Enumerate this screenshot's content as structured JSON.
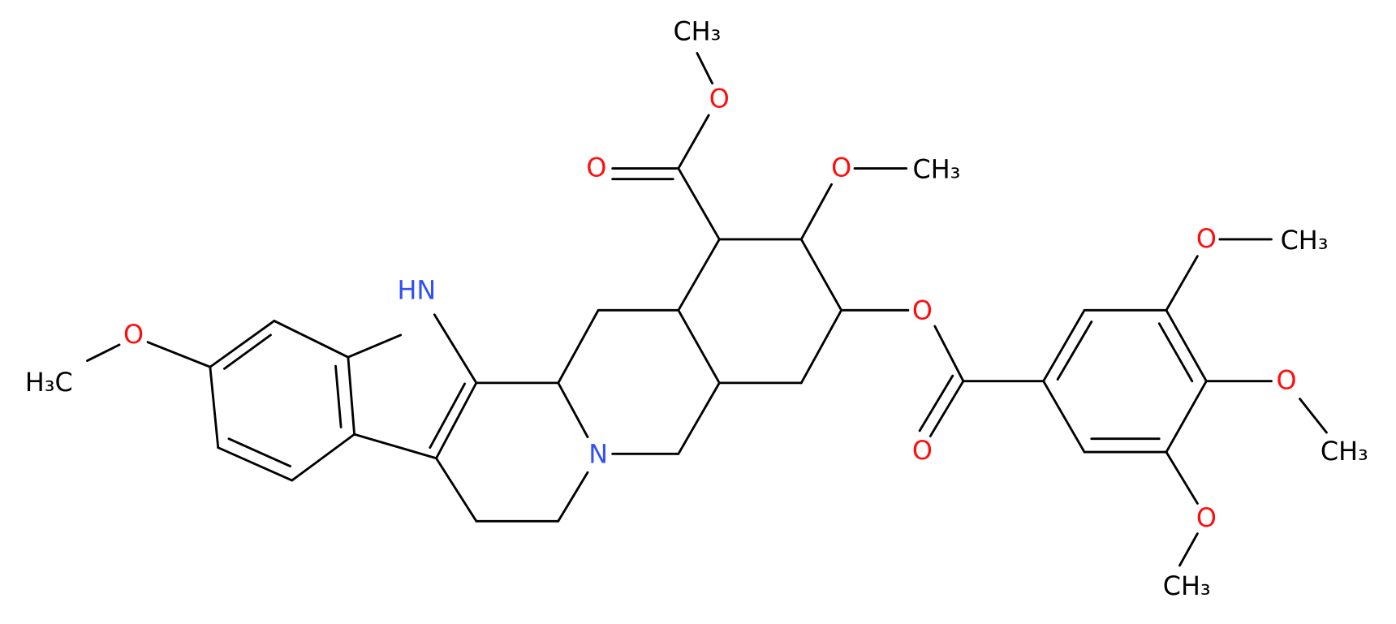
{
  "atoms": [
    {
      "label": "CH₃"
    },
    {
      "label": "O"
    },
    {
      "label": "O"
    },
    {
      "label": "O"
    },
    {
      "label": "CH₃"
    },
    {
      "label": "HN"
    },
    {
      "label": "O"
    },
    {
      "label": "H₃C"
    },
    {
      "label": "N"
    },
    {
      "label": "O"
    },
    {
      "label": "O"
    },
    {
      "label": "O"
    },
    {
      "label": "CH₃"
    },
    {
      "label": "O"
    },
    {
      "label": "CH₃"
    },
    {
      "label": "O"
    },
    {
      "label": "CH₃"
    }
  ]
}
